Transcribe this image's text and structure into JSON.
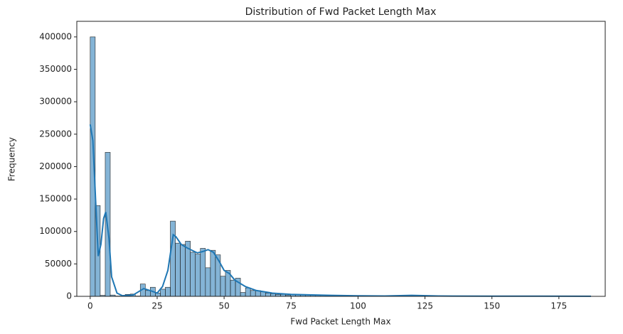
{
  "chart_data": {
    "type": "histogram",
    "title": "Distribution of Fwd Packet Length Max",
    "x_label": "Fwd Packet Length Max",
    "y_label": "Frequency",
    "color": "#1f77b4",
    "bins": [
      0,
      1.87,
      3.74,
      5.61,
      7.48,
      9.35,
      11.22,
      13.09,
      14.96,
      16.83,
      18.7,
      20.57,
      22.44,
      24.31,
      26.18,
      28.05,
      29.92,
      31.79,
      33.66,
      35.53,
      37.4,
      39.27,
      41.14,
      43.01,
      44.88,
      46.75,
      48.62,
      50.49,
      52.36,
      54.23,
      56.1,
      57.97,
      59.84,
      61.71,
      63.58,
      65.45,
      67.32,
      69.19,
      71.06,
      72.93,
      74.8,
      76.67,
      78.54,
      80.41,
      82.28,
      84.15,
      86.02,
      87.89,
      89.76,
      91.63,
      93.5,
      95.37,
      97.24,
      99.11,
      100.98,
      102.85,
      104.72,
      106.59,
      108.46,
      110.33,
      112.2,
      114.07,
      115.94,
      117.81,
      119.68,
      121.55,
      123.42,
      125.29,
      127.16,
      129.03,
      130.9,
      132.77,
      134.64,
      136.51,
      138.38,
      140.25,
      142.12,
      143.99,
      145.86,
      147.73,
      149.6,
      151.47,
      153.34,
      155.21,
      157.08,
      158.95,
      160.82,
      162.69,
      164.56,
      166.43,
      168.3,
      170.17,
      172.04,
      173.91,
      175.78,
      177.65,
      179.52,
      181.39,
      183.26,
      185.13,
      187
    ],
    "values": [
      400000,
      140000,
      1500,
      222000,
      2000,
      500,
      300,
      3000,
      3500,
      500,
      19000,
      9000,
      14000,
      5000,
      11000,
      14000,
      116000,
      82000,
      80000,
      85000,
      68000,
      65000,
      74000,
      44000,
      71000,
      64000,
      31000,
      40000,
      25000,
      28000,
      6000,
      13000,
      9000,
      9000,
      7000,
      5000,
      4000,
      3000,
      3000,
      2000,
      2500,
      3000,
      3000,
      2500,
      2000,
      2000,
      1500,
      1200,
      1000,
      900,
      800,
      700,
      600,
      500,
      500,
      400,
      400,
      400,
      300,
      300,
      300,
      300,
      500,
      900,
      1200,
      600,
      300,
      300,
      200,
      200,
      150,
      150,
      150,
      150,
      150,
      150,
      150,
      150,
      150,
      150,
      150,
      150,
      150,
      150,
      150,
      150,
      150,
      150,
      150,
      150,
      150,
      150,
      150,
      150,
      150,
      150,
      150,
      150,
      150,
      150
    ],
    "kde": {
      "x": [
        0,
        1,
        2,
        3,
        4,
        5,
        5.8,
        7,
        8,
        10,
        12,
        16,
        20,
        23,
        25,
        27,
        29,
        31,
        32,
        34,
        36,
        38.5,
        40,
        42,
        44,
        46,
        48,
        50,
        52,
        54,
        58,
        62,
        68,
        75,
        80,
        90,
        100,
        110,
        120,
        130,
        150,
        187
      ],
      "values": [
        265000,
        240000,
        150000,
        62000,
        80000,
        120000,
        130000,
        90000,
        30000,
        5000,
        1000,
        2000,
        12000,
        8000,
        5000,
        15000,
        40000,
        95000,
        92000,
        80000,
        75000,
        70000,
        67000,
        69000,
        72000,
        68000,
        55000,
        40000,
        35000,
        25000,
        15000,
        9000,
        5000,
        3000,
        2500,
        1500,
        800,
        500,
        1500,
        500,
        300,
        200
      ]
    },
    "xlim": [
      -5,
      192.3
    ],
    "ylim": [
      0,
      424000
    ],
    "xticks": [
      0,
      25,
      50,
      75,
      100,
      125,
      150,
      175
    ],
    "yticks": [
      0,
      50000,
      100000,
      150000,
      200000,
      250000,
      300000,
      350000,
      400000
    ]
  }
}
